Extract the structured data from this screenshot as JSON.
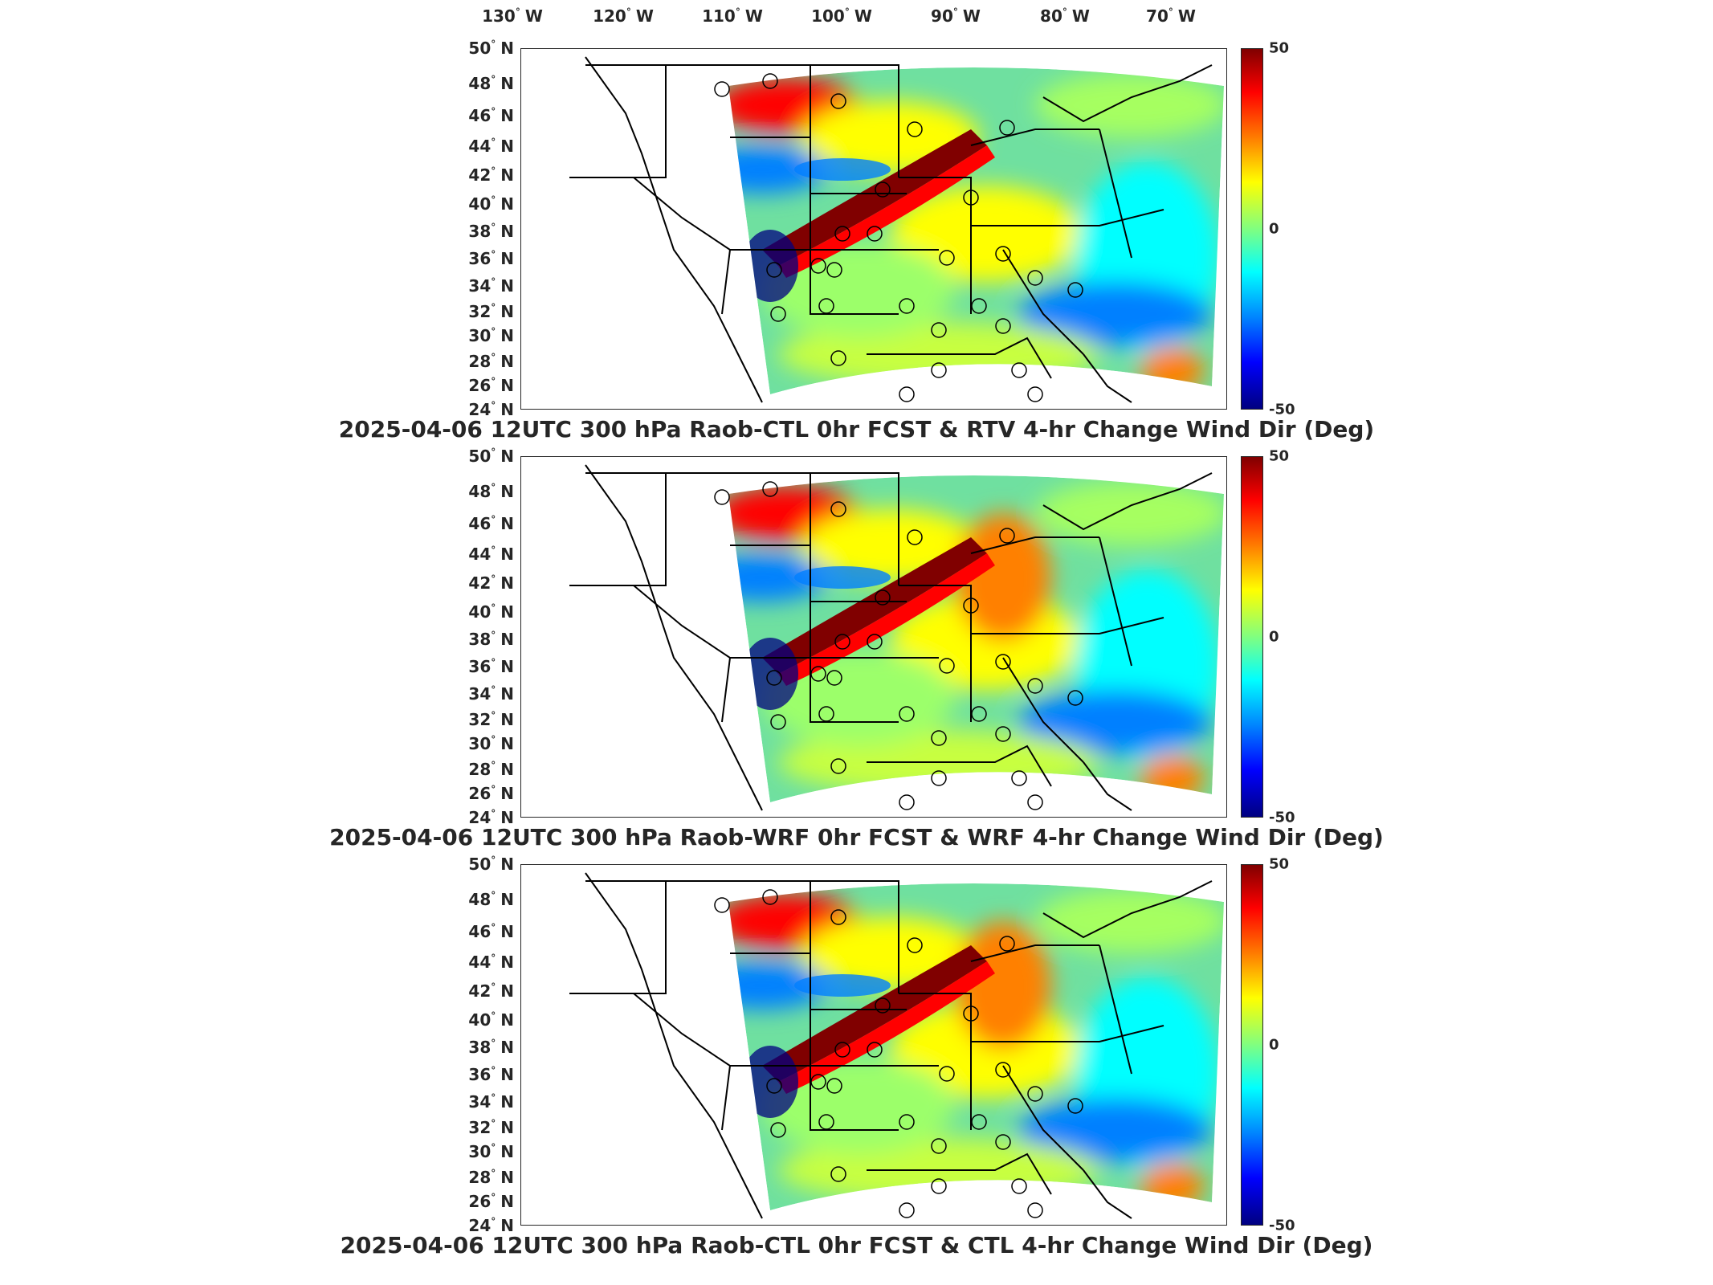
{
  "longitude_labels": [
    {
      "deg": "130",
      "hemi": "W"
    },
    {
      "deg": "120",
      "hemi": "W"
    },
    {
      "deg": "110",
      "hemi": "W"
    },
    {
      "deg": "100",
      "hemi": "W"
    },
    {
      "deg": "90",
      "hemi": "W"
    },
    {
      "deg": "80",
      "hemi": "W"
    },
    {
      "deg": "70",
      "hemi": "W"
    }
  ],
  "latitude_labels": [
    {
      "deg": "50",
      "hemi": "N"
    },
    {
      "deg": "48",
      "hemi": "N"
    },
    {
      "deg": "46",
      "hemi": "N"
    },
    {
      "deg": "44",
      "hemi": "N"
    },
    {
      "deg": "42",
      "hemi": "N"
    },
    {
      "deg": "40",
      "hemi": "N"
    },
    {
      "deg": "38",
      "hemi": "N"
    },
    {
      "deg": "36",
      "hemi": "N"
    },
    {
      "deg": "34",
      "hemi": "N"
    },
    {
      "deg": "32",
      "hemi": "N"
    },
    {
      "deg": "30",
      "hemi": "N"
    },
    {
      "deg": "28",
      "hemi": "N"
    },
    {
      "deg": "26",
      "hemi": "N"
    },
    {
      "deg": "24",
      "hemi": "N"
    }
  ],
  "degree_symbol": "°",
  "colorbar": {
    "max": "50",
    "mid": "0",
    "min": "-50"
  },
  "panels": [
    {
      "title": "2025-04-06 12UTC 300 hPa Raob-CTL 0hr FCST & RTV 4-hr Change Wind Dir (Deg)"
    },
    {
      "title": "2025-04-06 12UTC 300 hPa Raob-WRF 0hr FCST & WRF 4-hr Change Wind Dir (Deg)"
    },
    {
      "title": "2025-04-06 12UTC 300 hPa Raob-CTL 0hr FCST & CTL 4-hr Change Wind Dir (Deg)"
    }
  ],
  "colors": {
    "dark_red": "#800000",
    "red": "#ff0000",
    "orange": "#ff8000",
    "yellow": "#ffff00",
    "green": "#80ff80",
    "cyan": "#00ffff",
    "blue": "#0080ff",
    "dark_blue": "#000080"
  }
}
